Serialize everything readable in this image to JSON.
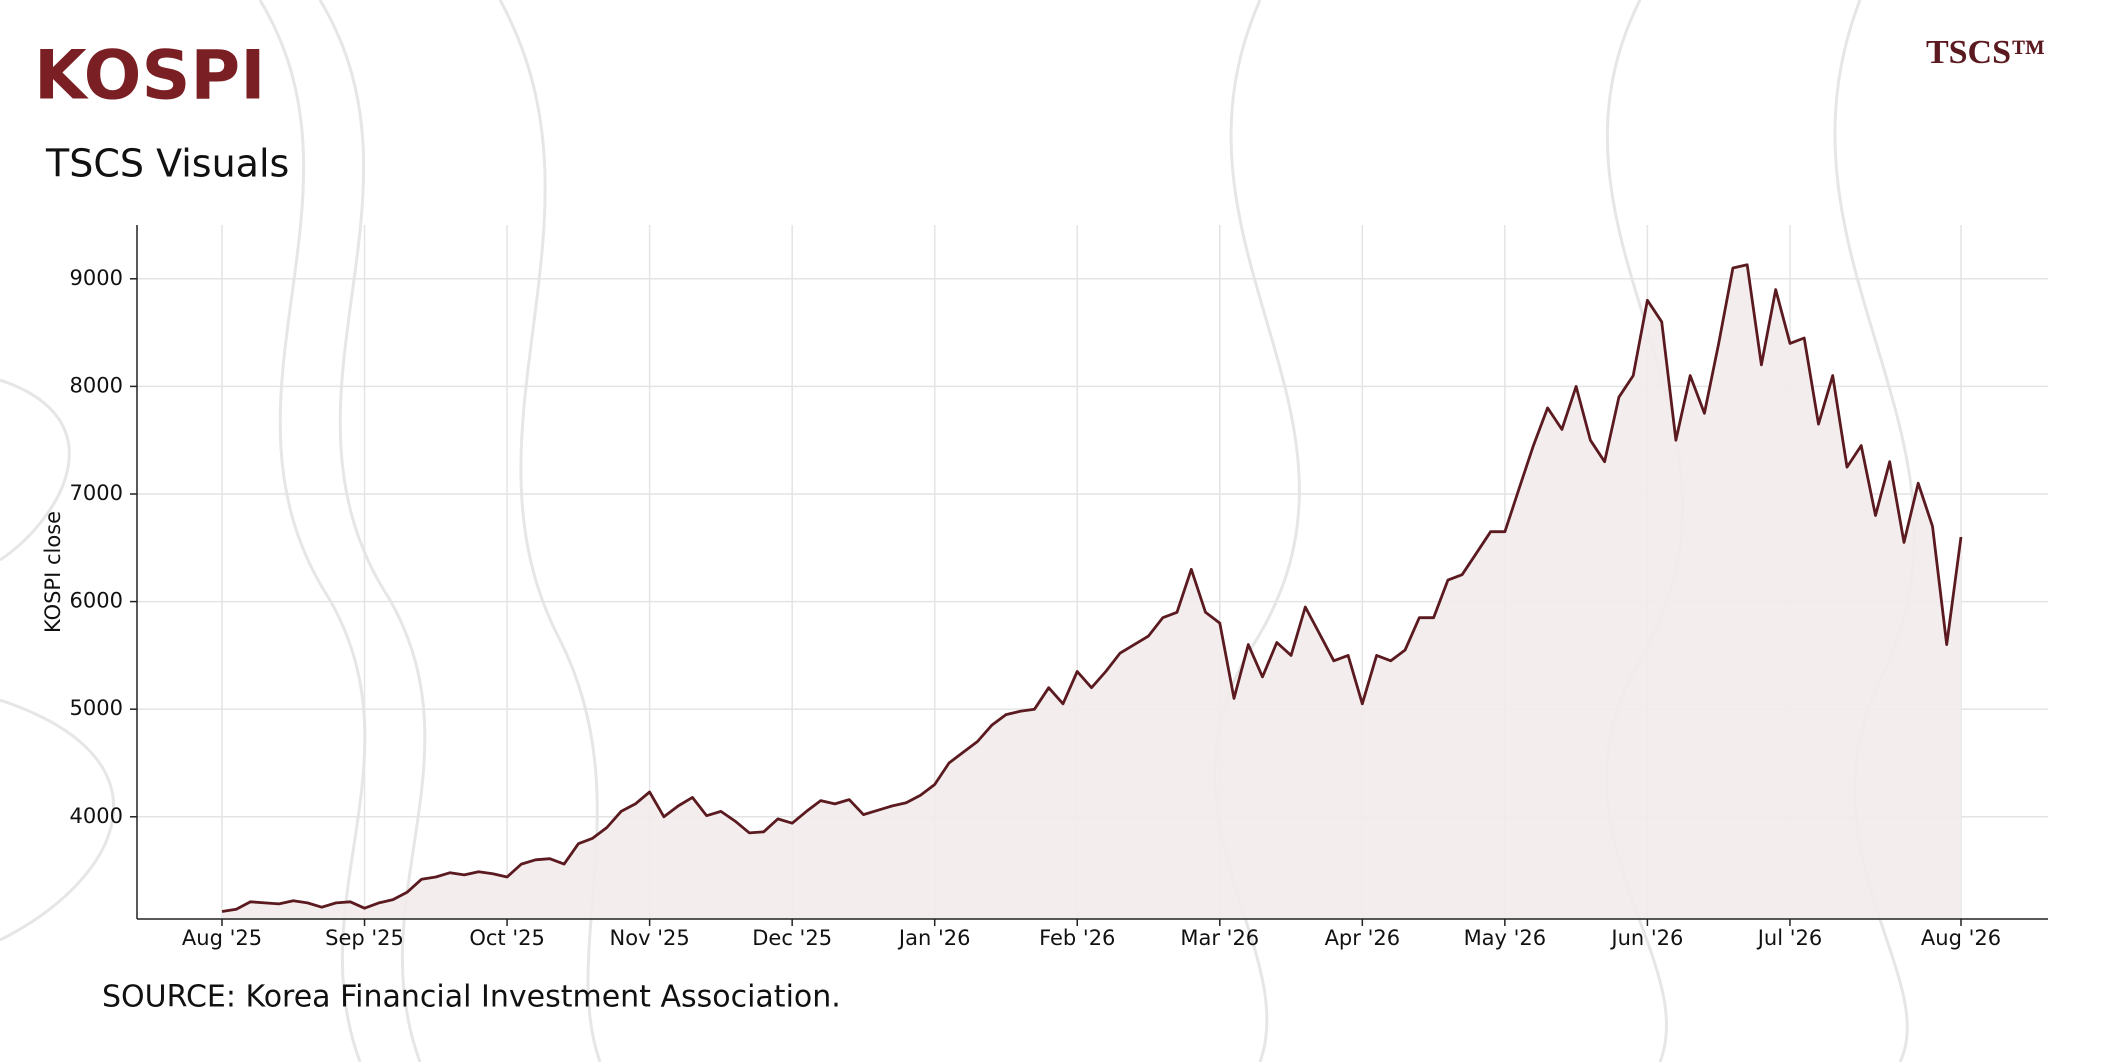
{
  "chart_data": {
    "type": "line",
    "title": "KOSPI",
    "subtitle": "TSCS Visuals",
    "logo": "TSCS™",
    "source": "SOURCE: Korea Financial Investment Association.",
    "y_label": "KOSPI close",
    "color": "#5a1a1f",
    "fill_color": "#f3ebeb",
    "grid": true,
    "ylim": [
      3050,
      9500
    ],
    "yticks": [
      4000,
      5000,
      6000,
      7000,
      8000,
      9000
    ],
    "categories": [
      "Aug '25",
      null,
      null,
      null,
      null,
      null,
      null,
      null,
      null,
      null,
      "Sep '25",
      null,
      null,
      null,
      null,
      null,
      null,
      null,
      null,
      null,
      "Oct '25",
      null,
      null,
      null,
      null,
      null,
      null,
      null,
      null,
      null,
      "Nov '25",
      null,
      null,
      null,
      null,
      null,
      null,
      null,
      null,
      null,
      "Dec '25",
      null,
      null,
      null,
      null,
      null,
      null,
      null,
      null,
      null,
      "Jan '26",
      null,
      null,
      null,
      null,
      null,
      null,
      null,
      null,
      null,
      "Feb '26",
      null,
      null,
      null,
      null,
      null,
      null,
      null,
      null,
      null,
      "Mar '26",
      null,
      null,
      null,
      null,
      null,
      null,
      null,
      null,
      null,
      "Apr '26",
      null,
      null,
      null,
      null,
      null,
      null,
      null,
      null,
      null,
      "May '26",
      null,
      null,
      null,
      null,
      null,
      null,
      null,
      null,
      null,
      "Jun '26",
      null,
      null,
      null,
      null,
      null,
      null,
      null,
      null,
      null,
      "Jul '26",
      null,
      null,
      null,
      null,
      null,
      null,
      null,
      null,
      null,
      null,
      null,
      "Aug '26"
    ],
    "values": [
      3120,
      3140,
      3210,
      3200,
      3190,
      3220,
      3200,
      3160,
      3200,
      3210,
      3150,
      3200,
      3230,
      3300,
      3420,
      3440,
      3480,
      3460,
      3490,
      3470,
      3440,
      3560,
      3600,
      3610,
      3560,
      3750,
      3800,
      3900,
      4050,
      4120,
      4230,
      4000,
      4100,
      4180,
      4010,
      4050,
      3960,
      3850,
      3860,
      3980,
      3940,
      4050,
      4150,
      4120,
      4160,
      4020,
      4060,
      4100,
      4130,
      4200,
      4300,
      4500,
      4600,
      4700,
      4850,
      4950,
      4980,
      5000,
      5200,
      5050,
      5350,
      5200,
      5350,
      5520,
      5600,
      5680,
      5850,
      5900,
      6300,
      5900,
      5800,
      5100,
      5600,
      5300,
      5620,
      5500,
      5950,
      5700,
      5450,
      5500,
      5050,
      5500,
      5450,
      5550,
      5850,
      5850,
      6200,
      6250,
      6450,
      6650,
      6650,
      7050,
      7450,
      7800,
      7600,
      8000,
      7500,
      7300,
      7900,
      8100,
      8800,
      8600,
      7500,
      8100,
      7750,
      8400,
      9100,
      9130,
      8200,
      8900,
      8400,
      8450,
      7650,
      8100,
      7250,
      7450,
      6800,
      7300,
      6550,
      7100,
      6700,
      5600,
      6600
    ]
  }
}
